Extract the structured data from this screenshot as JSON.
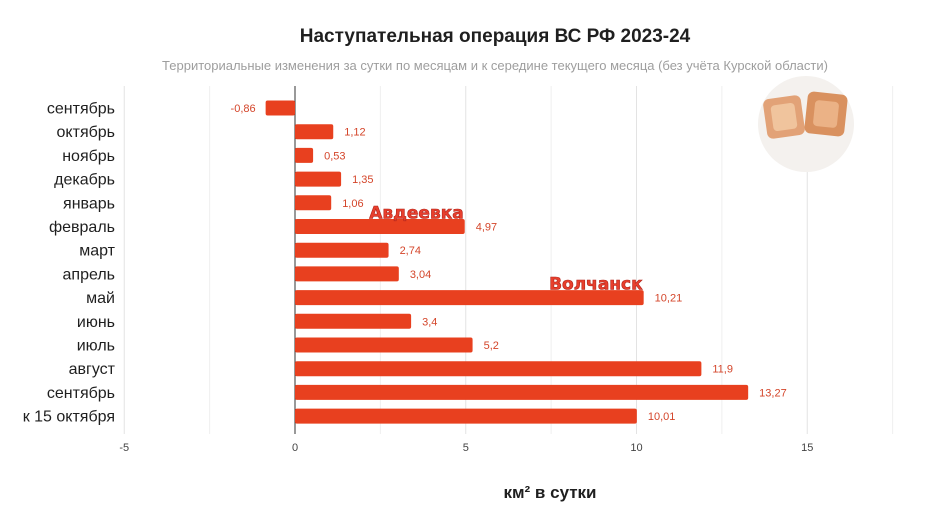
{
  "chart_data": {
    "type": "bar",
    "orientation": "horizontal",
    "title": "Наступательная операция ВС РФ 2023-24",
    "subtitle": "Территориальные изменения за сутки по месяцам и к середине текущего месяца (без учёта Курской области)",
    "xlabel": "км² в сутки",
    "ylabel": "",
    "xlim": [
      -5,
      18.5
    ],
    "xticks": [
      -5,
      0,
      5,
      10,
      15
    ],
    "grid": true,
    "bar_color": "#e8401f",
    "categories": [
      "сентябрь",
      "октябрь",
      "ноябрь",
      "декабрь",
      "январь",
      "февраль",
      "март",
      "апрель",
      "май",
      "июнь",
      "июль",
      "август",
      "сентябрь",
      "к 15 октября"
    ],
    "values": [
      -0.86,
      1.12,
      0.53,
      1.35,
      1.06,
      4.97,
      2.74,
      3.04,
      10.21,
      3.4,
      5.2,
      11.9,
      13.27,
      10.01
    ],
    "value_labels": [
      "-0,86",
      "1,12",
      "0,53",
      "1,35",
      "1,06",
      "4,97",
      "2,74",
      "3,04",
      "10,21",
      "3,4",
      "5,2",
      "11,9",
      "13,27",
      "10,01"
    ],
    "annotations": [
      {
        "text": "Авдеевка",
        "category_index": 5
      },
      {
        "text": "Волчанск",
        "category_index": 8
      }
    ]
  }
}
